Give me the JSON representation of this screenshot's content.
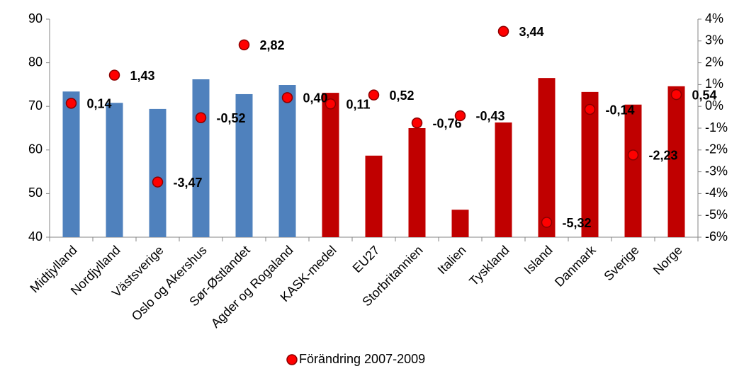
{
  "chart_data": {
    "type": "bar",
    "categories": [
      "Midtjylland",
      "Nordjylland",
      "Västsverige",
      "Oslo og Akershus",
      "Sør-Østlandet",
      "Agder og Rogaland",
      "KASK-medel",
      "EU27",
      "Storbritannien",
      "Italien",
      "Tyskland",
      "Island",
      "Danmark",
      "Sverige",
      "Norge"
    ],
    "series": [
      {
        "type": "bar",
        "values": [
          73.4,
          70.8,
          69.4,
          76.2,
          72.8,
          74.9,
          73.1,
          58.7,
          65.0,
          46.3,
          66.3,
          76.5,
          73.3,
          70.4,
          74.6
        ],
        "colors": [
          "#4f81bd",
          "#4f81bd",
          "#4f81bd",
          "#4f81bd",
          "#4f81bd",
          "#4f81bd",
          "#c00000",
          "#c00000",
          "#c00000",
          "#c00000",
          "#c00000",
          "#c00000",
          "#c00000",
          "#c00000",
          "#c00000"
        ]
      },
      {
        "type": "scatter",
        "name": "Förändring 2007-2009",
        "axis": "y2",
        "color": "#ff0000",
        "values": [
          0.14,
          1.43,
          -3.47,
          -0.52,
          2.82,
          0.4,
          0.11,
          0.52,
          -0.76,
          -0.43,
          3.44,
          -5.32,
          -0.14,
          -2.23,
          0.54
        ],
        "value_labels": [
          "0,14",
          "1,43",
          "-3,47",
          "-0,52",
          "2,82",
          "0,40",
          "0,11",
          "0,52",
          "-0,76",
          "-0,43",
          "3,44",
          "-5,32",
          "-0,14",
          "-2,23",
          "0,54"
        ]
      }
    ],
    "ylim": [
      40,
      90
    ],
    "yticks": [
      40,
      50,
      60,
      70,
      80,
      90
    ],
    "y2lim": [
      -6,
      4
    ],
    "y2ticks": [
      {
        "value": -6,
        "label": "-6%"
      },
      {
        "value": -5,
        "label": "-5%"
      },
      {
        "value": -4,
        "label": "-4%"
      },
      {
        "value": -3,
        "label": "-3%"
      },
      {
        "value": -2,
        "label": "-2%"
      },
      {
        "value": -1,
        "label": "-1%"
      },
      {
        "value": 0,
        "label": "0%"
      },
      {
        "value": 1,
        "label": "1%"
      },
      {
        "value": 2,
        "label": "2%"
      },
      {
        "value": 3,
        "label": "3%"
      },
      {
        "value": 4,
        "label": "4%"
      }
    ],
    "grid": false,
    "legend": "bottom"
  }
}
